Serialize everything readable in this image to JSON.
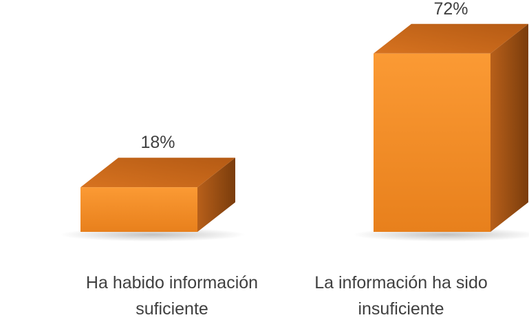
{
  "chart_data": {
    "type": "bar3d",
    "categories": [
      "Ha habido información suficiente",
      "La información ha sido insuficiente"
    ],
    "values": [
      18,
      72
    ],
    "value_labels": [
      "18%",
      "72%"
    ],
    "color": "#f68f2a"
  }
}
